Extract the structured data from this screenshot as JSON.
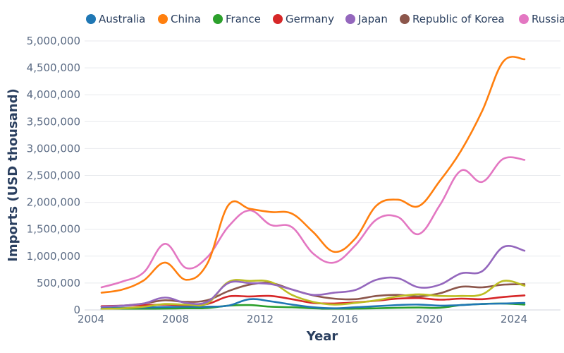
{
  "chart_data": {
    "type": "line",
    "xlabel": "Year",
    "ylabel": "Imports (USD thousand)",
    "x": [
      2004.5,
      2005.5,
      2006.5,
      2007.5,
      2008.5,
      2009.5,
      2010.5,
      2011.5,
      2012.5,
      2013.5,
      2014.5,
      2015.5,
      2016.5,
      2017.5,
      2018.5,
      2019.5,
      2020.5,
      2021.5,
      2022.5,
      2023.5,
      2024.5
    ],
    "xlim": [
      2003.7,
      2026.2
    ],
    "ylim": [
      0,
      5000000
    ],
    "xticks": [
      2004,
      2008,
      2012,
      2016,
      2020,
      2024
    ],
    "yticks": [
      0,
      500000,
      1000000,
      1500000,
      2000000,
      2500000,
      3000000,
      3500000,
      4000000,
      4500000,
      5000000
    ],
    "ytick_labels": [
      "0",
      "500,000",
      "1,000,000",
      "1,500,000",
      "2,000,000",
      "2,500,000",
      "3,000,000",
      "3,500,000",
      "4,000,000",
      "4,500,000",
      "5,000,000"
    ],
    "xtick_labels": [
      "2004",
      "2008",
      "2012",
      "2016",
      "2020",
      "2024"
    ],
    "grid": true,
    "legend_position": "top",
    "series": [
      {
        "name": "Australia",
        "color": "#1f77b4",
        "values": [
          30000,
          40000,
          45000,
          55000,
          60000,
          60000,
          80000,
          200000,
          160000,
          100000,
          50000,
          30000,
          50000,
          70000,
          90000,
          100000,
          80000,
          90000,
          110000,
          120000,
          130000
        ]
      },
      {
        "name": "China",
        "color": "#ff7f0e",
        "values": [
          320000,
          380000,
          550000,
          880000,
          560000,
          860000,
          1950000,
          1880000,
          1820000,
          1790000,
          1450000,
          1080000,
          1330000,
          1940000,
          2050000,
          1930000,
          2400000,
          2960000,
          3700000,
          4620000,
          4660000
        ]
      },
      {
        "name": "France",
        "color": "#2ca02c",
        "values": [
          10000,
          15000,
          20000,
          25000,
          30000,
          35000,
          80000,
          90000,
          60000,
          50000,
          30000,
          20000,
          25000,
          30000,
          40000,
          45000,
          40000,
          90000,
          110000,
          120000,
          100000
        ]
      },
      {
        "name": "Germany",
        "color": "#d62728",
        "values": [
          70000,
          80000,
          90000,
          100000,
          90000,
          110000,
          250000,
          250000,
          260000,
          200000,
          130000,
          120000,
          140000,
          170000,
          210000,
          220000,
          190000,
          210000,
          200000,
          240000,
          270000
        ]
      },
      {
        "name": "Japan",
        "color": "#9467bd",
        "values": [
          60000,
          80000,
          120000,
          230000,
          130000,
          150000,
          500000,
          500000,
          480000,
          380000,
          280000,
          320000,
          370000,
          560000,
          590000,
          420000,
          470000,
          680000,
          720000,
          1170000,
          1100000
        ]
      },
      {
        "name": "Republic of Korea",
        "color": "#8c564b",
        "values": [
          60000,
          80000,
          120000,
          180000,
          150000,
          180000,
          350000,
          470000,
          500000,
          380000,
          270000,
          210000,
          200000,
          260000,
          280000,
          250000,
          310000,
          430000,
          420000,
          470000,
          480000
        ]
      },
      {
        "name": "Russia",
        "color": "#e377c2",
        "values": [
          420000,
          530000,
          700000,
          1230000,
          780000,
          980000,
          1550000,
          1850000,
          1580000,
          1540000,
          1050000,
          880000,
          1200000,
          1680000,
          1730000,
          1410000,
          1950000,
          2590000,
          2380000,
          2810000,
          2790000
        ]
      },
      {
        "name": "",
        "color": "#bcbd22",
        "values": [
          20000,
          30000,
          60000,
          110000,
          100000,
          120000,
          520000,
          540000,
          520000,
          280000,
          150000,
          100000,
          130000,
          180000,
          250000,
          290000,
          260000,
          260000,
          290000,
          540000,
          450000
        ]
      }
    ]
  }
}
